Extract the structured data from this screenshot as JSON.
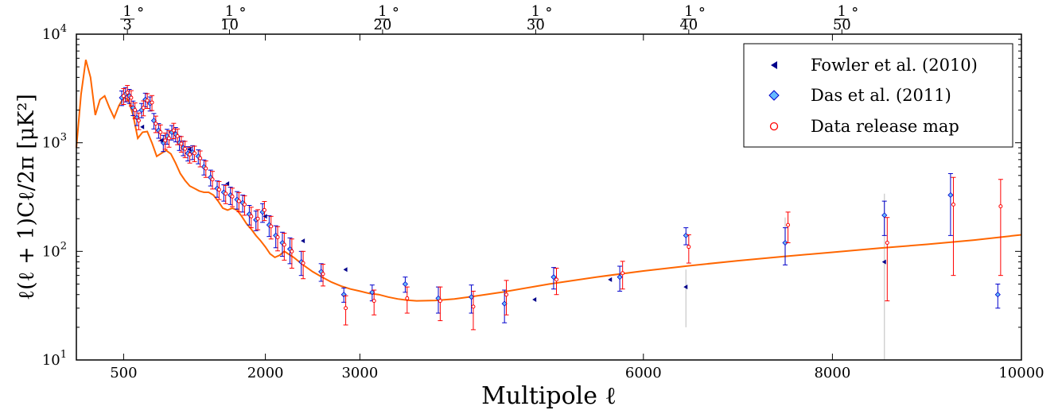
{
  "chart_data": {
    "type": "scatter",
    "xlabel": "Multipole ℓ",
    "ylabel": "ℓ(ℓ + 1)Cℓ/2π [μK²]",
    "xlim": [
      0,
      10000
    ],
    "ylim": [
      10,
      10000
    ],
    "yscale": "log",
    "x_ticks": [
      {
        "value": 500,
        "label": "500"
      },
      {
        "value": 2000,
        "label": "2000"
      },
      {
        "value": 3000,
        "label": "3000"
      },
      {
        "value": 6000,
        "label": "6000"
      },
      {
        "value": 8000,
        "label": "8000"
      },
      {
        "value": 10000,
        "label": "10000"
      }
    ],
    "y_ticks": [
      {
        "value": 10,
        "base": "10",
        "exp": "1"
      },
      {
        "value": 100,
        "base": "10",
        "exp": "2"
      },
      {
        "value": 1000,
        "base": "10",
        "exp": "3"
      },
      {
        "value": 10000,
        "base": "10",
        "exp": "4"
      }
    ],
    "top_ticks": [
      {
        "value": 540,
        "num": "1",
        "den": "3",
        "unit": "°"
      },
      {
        "value": 1620,
        "num": "1",
        "den": "10",
        "unit": "°"
      },
      {
        "value": 3240,
        "num": "1",
        "den": "20",
        "unit": "°"
      },
      {
        "value": 4860,
        "num": "1",
        "den": "30",
        "unit": "°"
      },
      {
        "value": 6480,
        "num": "1",
        "den": "40",
        "unit": "°"
      },
      {
        "value": 8100,
        "num": "1",
        "den": "50",
        "unit": "°"
      }
    ],
    "legend": {
      "placement": "top-right",
      "entries": [
        {
          "label": "Fowler et al. (2010)",
          "marker": "triangle-left",
          "color": "#00008b"
        },
        {
          "label": "Das et al. (2011)",
          "marker": "diamond",
          "color": "#66bbff"
        },
        {
          "label": "Data release map",
          "marker": "circle-open",
          "color": "#ff0000"
        }
      ]
    },
    "colors": {
      "model": "#ff6600",
      "das": "#0000cc",
      "release": "#ff0000",
      "fowler": "#00008b",
      "gray_error": "#c8c8c8"
    },
    "series": [
      {
        "name": "Model",
        "kind": "line",
        "x": [
          0,
          50,
          100,
          150,
          200,
          250,
          300,
          350,
          400,
          450,
          500,
          550,
          600,
          650,
          700,
          750,
          800,
          850,
          900,
          950,
          1000,
          1050,
          1100,
          1150,
          1200,
          1250,
          1300,
          1350,
          1400,
          1450,
          1500,
          1550,
          1600,
          1650,
          1700,
          1750,
          1800,
          1850,
          1900,
          1950,
          2000,
          2050,
          2100,
          2150,
          2200,
          2300,
          2400,
          2500,
          2600,
          2700,
          2800,
          2900,
          3000,
          3100,
          3200,
          3300,
          3400,
          3500,
          3600,
          3800,
          4000,
          4200,
          4500,
          5000,
          5500,
          6000,
          6500,
          7000,
          7500,
          8000,
          8500,
          9000,
          9500,
          10000
        ],
        "y": [
          900,
          2800,
          5800,
          4000,
          1800,
          2500,
          2700,
          2100,
          1700,
          2200,
          2600,
          2500,
          1800,
          1100,
          1250,
          1270,
          1000,
          750,
          800,
          850,
          790,
          650,
          520,
          450,
          400,
          380,
          360,
          350,
          350,
          330,
          290,
          250,
          240,
          250,
          240,
          210,
          180,
          160,
          140,
          125,
          110,
          95,
          88,
          92,
          100,
          88,
          75,
          65,
          58,
          52,
          48,
          45,
          43,
          41,
          40,
          38,
          36.5,
          35.5,
          35,
          35.3,
          36.5,
          38.5,
          42,
          50,
          58,
          66,
          74,
          82,
          90,
          98,
          107,
          116,
          127,
          142
        ]
      },
      {
        "name": "Das et al. (2011)",
        "kind": "points",
        "x": [
          480,
          520,
          560,
          600,
          640,
          690,
          730,
          780,
          820,
          870,
          920,
          960,
          1010,
          1050,
          1090,
          1130,
          1180,
          1230,
          1290,
          1350,
          1420,
          1490,
          1560,
          1630,
          1700,
          1760,
          1830,
          1900,
          1970,
          2040,
          2110,
          2180,
          2260,
          2380,
          2590,
          2830,
          3130,
          3480,
          3830,
          4180,
          4530,
          5050,
          5750,
          6450,
          7500,
          8550,
          9250,
          9750
        ],
        "y": [
          2600,
          2800,
          2700,
          2100,
          1700,
          2000,
          2500,
          2300,
          1600,
          1300,
          1000,
          1150,
          1250,
          1200,
          1000,
          900,
          800,
          820,
          750,
          600,
          480,
          380,
          350,
          330,
          300,
          280,
          220,
          195,
          230,
          175,
          140,
          120,
          105,
          80,
          65,
          40,
          42,
          50,
          37,
          38,
          33,
          58,
          58,
          140,
          120,
          215,
          330,
          40
        ],
        "err": [
          400,
          420,
          400,
          320,
          260,
          300,
          360,
          340,
          260,
          200,
          170,
          180,
          190,
          180,
          150,
          140,
          120,
          120,
          110,
          95,
          80,
          65,
          60,
          60,
          55,
          50,
          45,
          40,
          45,
          38,
          32,
          30,
          28,
          20,
          12,
          6,
          7,
          8,
          10,
          11,
          11,
          13,
          15,
          25,
          45,
          75,
          190,
          10
        ]
      },
      {
        "name": "Data release map",
        "kind": "points",
        "x": [
          500,
          540,
          580,
          620,
          660,
          710,
          750,
          800,
          840,
          890,
          940,
          980,
          1030,
          1070,
          1110,
          1150,
          1200,
          1250,
          1310,
          1370,
          1440,
          1510,
          1580,
          1650,
          1720,
          1780,
          1850,
          1920,
          1990,
          2060,
          2130,
          2200,
          2280,
          2400,
          2610,
          2850,
          3150,
          3500,
          3850,
          4200,
          4550,
          5080,
          5780,
          6480,
          7530,
          8580,
          9280,
          9780
        ],
        "y": [
          2700,
          2900,
          2600,
          2000,
          1600,
          2100,
          2450,
          2350,
          1500,
          1250,
          1050,
          1100,
          1300,
          1150,
          980,
          880,
          780,
          800,
          720,
          580,
          460,
          370,
          340,
          320,
          290,
          270,
          210,
          200,
          240,
          170,
          135,
          115,
          100,
          78,
          62,
          30,
          35,
          37,
          35,
          31,
          40,
          55,
          63,
          110,
          175,
          120,
          270,
          260
        ],
        "err": [
          450,
          470,
          420,
          330,
          280,
          330,
          380,
          370,
          260,
          210,
          180,
          190,
          210,
          190,
          160,
          150,
          130,
          130,
          120,
          100,
          85,
          70,
          65,
          62,
          58,
          55,
          45,
          42,
          48,
          40,
          34,
          32,
          30,
          22,
          14,
          9,
          9,
          10,
          12,
          12,
          14,
          15,
          18,
          32,
          55,
          85,
          210,
          200
        ]
      },
      {
        "name": "Fowler et al. (2010)",
        "kind": "points",
        "x": [
          700,
          900,
          1200,
          1600,
          2000,
          2400,
          2850,
          4850,
          5650,
          6450,
          8550
        ],
        "y": [
          1400,
          1050,
          870,
          420,
          210,
          125,
          68,
          36,
          55,
          47,
          80
        ],
        "err": [
          0,
          0,
          0,
          0,
          0,
          0,
          0,
          0,
          0,
          0,
          0
        ]
      },
      {
        "name": "Gray error bars",
        "kind": "errorbars",
        "x": [
          6450,
          7500,
          8550
        ],
        "lo": [
          20,
          75,
          10
        ],
        "hi": [
          68,
          205,
          340
        ]
      }
    ]
  }
}
